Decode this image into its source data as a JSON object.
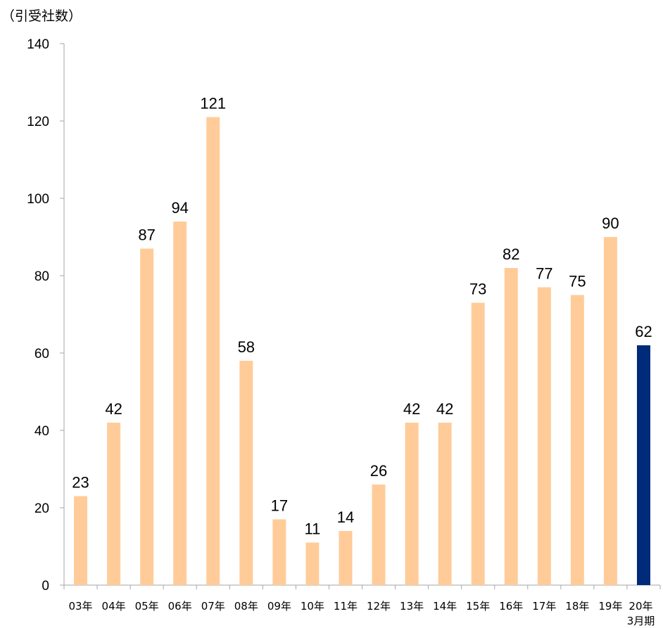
{
  "chart_data": {
    "type": "bar",
    "ylabel": "（引受社数）",
    "ylim": [
      0,
      140
    ],
    "yticks": [
      "0",
      "20",
      "40",
      "60",
      "80",
      "100",
      "120",
      "140"
    ],
    "categories": [
      "03年",
      "04年",
      "05年",
      "06年",
      "07年",
      "08年",
      "09年",
      "10年",
      "11年",
      "12年",
      "13年",
      "14年",
      "15年",
      "16年",
      "17年",
      "18年",
      "19年",
      "20年"
    ],
    "category_suffix_last": "3月期",
    "values": [
      23,
      42,
      87,
      94,
      121,
      58,
      17,
      11,
      14,
      26,
      42,
      42,
      73,
      82,
      77,
      75,
      90,
      62
    ],
    "grid": false,
    "colors": {
      "default_bar": "#FFCC99",
      "highlight_bar": "#002A7A",
      "axis": "#A6A6A6"
    },
    "highlight_index": 17
  }
}
